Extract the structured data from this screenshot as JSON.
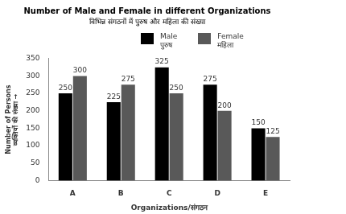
{
  "chart_data": {
    "type": "bar",
    "title": "Number of Male and Female in different Organizations",
    "subtitle": "विभिन्न संगठनों में पुरुष और महिला की संख्या",
    "x_label": "Organizations/संगठन",
    "y_label": [
      "Number of Persons",
      "व्यक्तियों की संख्या →"
    ],
    "categories": [
      "A",
      "B",
      "C",
      "D",
      "E"
    ],
    "series": [
      {
        "name": "Male\nपुरुष",
        "color": "#000000",
        "values": [
          250,
          225,
          325,
          275,
          150
        ]
      },
      {
        "name": "Female\nमहिला",
        "color": "#595959",
        "values": [
          300,
          275,
          250,
          200,
          125
        ]
      }
    ],
    "ylim": [
      0,
      350
    ],
    "yticks": [
      0,
      50,
      100,
      150,
      200,
      250,
      300,
      350
    ],
    "grid": false,
    "legend": "top",
    "data_labels": true
  }
}
